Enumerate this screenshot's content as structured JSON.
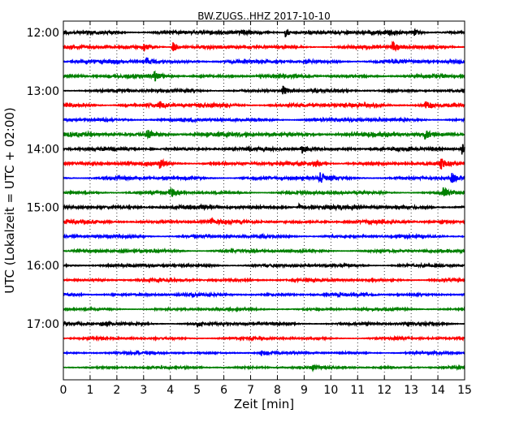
{
  "chart_data": {
    "type": "line",
    "title": "BW.ZUGS..HHZ 2017-10-10",
    "xlabel": "Zeit  [min]",
    "ylabel": "UTC (Lokalzeit = UTC + 02:00)",
    "xlim": [
      0,
      15
    ],
    "x_ticks": [
      0,
      1,
      2,
      3,
      4,
      5,
      6,
      7,
      8,
      9,
      10,
      11,
      12,
      13,
      14,
      15
    ],
    "x_tick_labels": [
      "0",
      "1",
      "2",
      "3",
      "4",
      "5",
      "6",
      "7",
      "8",
      "9",
      "10",
      "11",
      "12",
      "13",
      "14",
      "15"
    ],
    "y_tick_labels": [
      "12:00",
      "13:00",
      "14:00",
      "15:00",
      "16:00",
      "17:00"
    ],
    "y_tick_rows": [
      0,
      4,
      8,
      12,
      16,
      20
    ],
    "grid": "vertical dotted",
    "color_cycle": [
      "#000000",
      "#ff0000",
      "#0000ff",
      "#008000"
    ],
    "series": [
      {
        "start": "12:00",
        "color": "#000000",
        "amplitude": 0.35,
        "events": [
          [
            8.3,
            0.8
          ],
          [
            13.1,
            0.5
          ]
        ]
      },
      {
        "start": "12:15",
        "color": "#ff0000",
        "amplitude": 0.3,
        "events": [
          [
            3.0,
            0.6
          ],
          [
            4.1,
            1.0
          ],
          [
            12.3,
            1.0
          ]
        ]
      },
      {
        "start": "12:30",
        "color": "#0000ff",
        "amplitude": 0.3,
        "events": [
          [
            3.1,
            0.8
          ],
          [
            9.0,
            0.4
          ]
        ]
      },
      {
        "start": "12:45",
        "color": "#008000",
        "amplitude": 0.3,
        "events": [
          [
            3.4,
            0.9
          ]
        ]
      },
      {
        "start": "13:00",
        "color": "#000000",
        "amplitude": 0.25,
        "events": [
          [
            8.2,
            1.0
          ]
        ]
      },
      {
        "start": "13:15",
        "color": "#ff0000",
        "amplitude": 0.35,
        "events": [
          [
            3.6,
            0.6
          ],
          [
            13.5,
            0.8
          ]
        ]
      },
      {
        "start": "13:30",
        "color": "#0000ff",
        "amplitude": 0.3,
        "events": []
      },
      {
        "start": "13:45",
        "color": "#008000",
        "amplitude": 0.4,
        "events": [
          [
            3.1,
            0.9
          ],
          [
            13.5,
            0.8
          ]
        ]
      },
      {
        "start": "14:00",
        "color": "#000000",
        "amplitude": 0.3,
        "events": [
          [
            8.9,
            0.9
          ],
          [
            14.9,
            0.9
          ]
        ]
      },
      {
        "start": "14:15",
        "color": "#ff0000",
        "amplitude": 0.3,
        "events": [
          [
            3.6,
            0.8
          ],
          [
            9.4,
            0.6
          ],
          [
            14.1,
            0.9
          ]
        ]
      },
      {
        "start": "14:30",
        "color": "#0000ff",
        "amplitude": 0.3,
        "events": [
          [
            9.6,
            0.9
          ],
          [
            14.5,
            0.9
          ]
        ]
      },
      {
        "start": "14:45",
        "color": "#008000",
        "amplitude": 0.25,
        "events": [
          [
            4.0,
            0.9
          ],
          [
            14.2,
            0.9
          ]
        ]
      },
      {
        "start": "15:00",
        "color": "#000000",
        "amplitude": 0.35,
        "events": [
          [
            8.8,
            0.6
          ]
        ]
      },
      {
        "start": "15:15",
        "color": "#ff0000",
        "amplitude": 0.3,
        "events": [
          [
            5.5,
            0.4
          ]
        ]
      },
      {
        "start": "15:30",
        "color": "#0000ff",
        "amplitude": 0.25,
        "events": []
      },
      {
        "start": "15:45",
        "color": "#008000",
        "amplitude": 0.25,
        "events": []
      },
      {
        "start": "16:00",
        "color": "#000000",
        "amplitude": 0.25,
        "events": []
      },
      {
        "start": "16:15",
        "color": "#ff0000",
        "amplitude": 0.25,
        "events": []
      },
      {
        "start": "16:30",
        "color": "#0000ff",
        "amplitude": 0.25,
        "events": []
      },
      {
        "start": "16:45",
        "color": "#008000",
        "amplitude": 0.2,
        "events": []
      },
      {
        "start": "17:00",
        "color": "#000000",
        "amplitude": 0.25,
        "events": [
          [
            1.4,
            0.4
          ],
          [
            5.0,
            0.3
          ]
        ]
      },
      {
        "start": "17:15",
        "color": "#ff0000",
        "amplitude": 0.2,
        "events": []
      },
      {
        "start": "17:30",
        "color": "#0000ff",
        "amplitude": 0.2,
        "events": [
          [
            7.4,
            0.5
          ]
        ]
      },
      {
        "start": "17:45",
        "color": "#008000",
        "amplitude": 0.2,
        "events": [
          [
            9.3,
            0.4
          ]
        ]
      }
    ]
  }
}
